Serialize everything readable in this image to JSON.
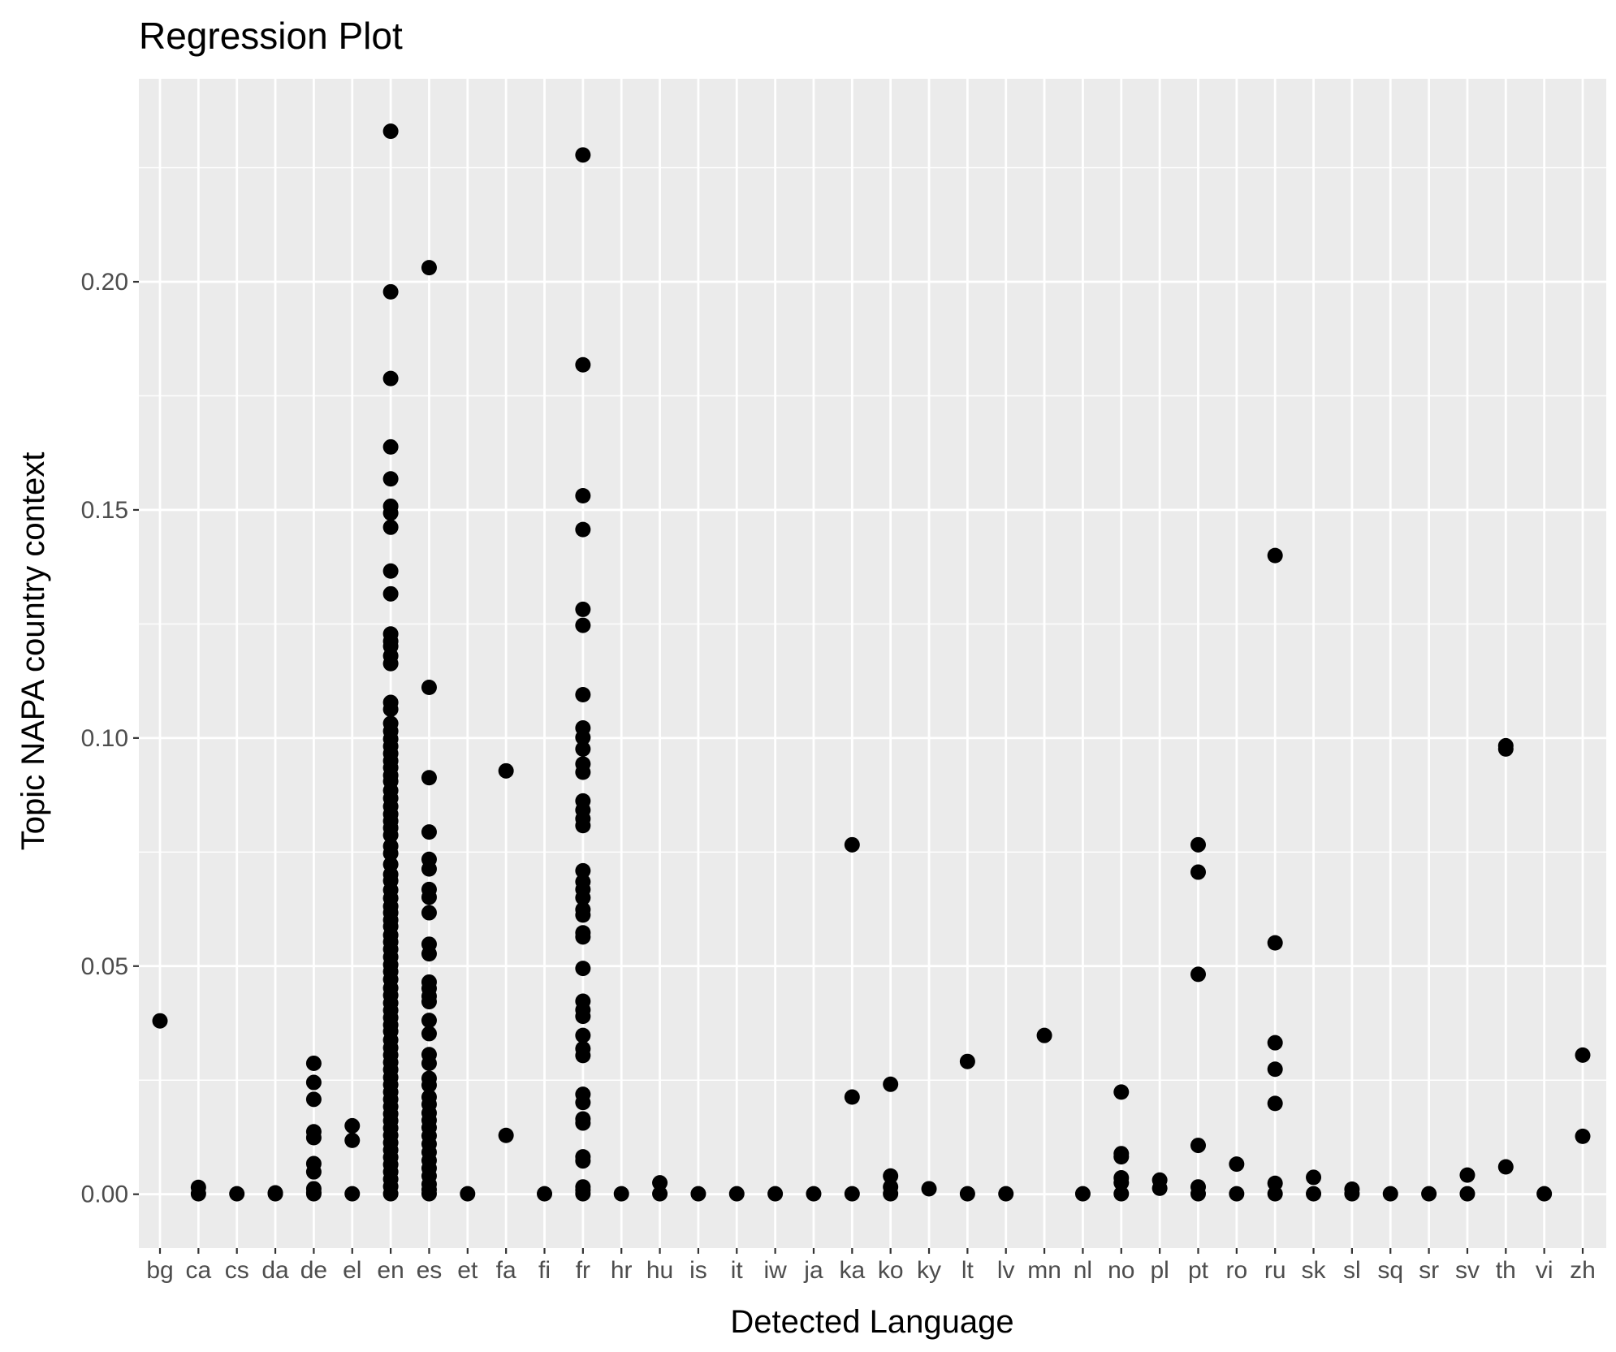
{
  "chart_data": {
    "type": "scatter",
    "title": "Regression Plot",
    "xlabel": "Detected Language",
    "ylabel": "Topic NAPA country context",
    "ylim": [
      -0.0118,
      0.2445
    ],
    "y_ticks": [
      "0.00",
      "0.05",
      "0.10",
      "0.15",
      "0.20"
    ],
    "y_tick_values": [
      0.0,
      0.05,
      0.1,
      0.15,
      0.2
    ],
    "grid": true,
    "legend": "none",
    "colors": {
      "panel": "#ebebeb",
      "grid": "#ffffff",
      "point": "#000000",
      "tick_text": "#4d4d4d",
      "tick_mark": "#333333"
    },
    "categories": [
      "bg",
      "ca",
      "cs",
      "da",
      "de",
      "el",
      "en",
      "es",
      "et",
      "fa",
      "fi",
      "fr",
      "hr",
      "hu",
      "is",
      "it",
      "iw",
      "ja",
      "ka",
      "ko",
      "ky",
      "lt",
      "lv",
      "mn",
      "nl",
      "no",
      "pl",
      "pt",
      "ro",
      "ru",
      "sk",
      "sl",
      "sq",
      "sr",
      "sv",
      "th",
      "vi",
      "zh"
    ],
    "points": {
      "bg": [
        0.038
      ],
      "ca": [
        0.0015,
        0.0001
      ],
      "cs": [
        0.0001
      ],
      "da": [
        0.0003,
        0.0001
      ],
      "de": [
        0.0287,
        0.0245,
        0.0208,
        0.0137,
        0.0124,
        0.0067,
        0.0049,
        0.0012,
        0.0004,
        0.0001
      ],
      "el": [
        0.015,
        0.0118,
        0.0001
      ],
      "en": [
        0.233,
        0.1978,
        0.1788,
        0.1638,
        0.1568,
        0.1508,
        0.1493,
        0.1462,
        0.1366,
        0.1316,
        0.1228,
        0.1212,
        0.1201,
        0.118,
        0.1163,
        0.1078,
        0.1063,
        0.1032,
        0.1015,
        0.0998,
        0.0982,
        0.0966,
        0.095,
        0.0935,
        0.0918,
        0.0905,
        0.0885,
        0.0868,
        0.085,
        0.0833,
        0.0818,
        0.0803,
        0.0787,
        0.0763,
        0.0747,
        0.0723,
        0.0701,
        0.0687,
        0.0667,
        0.0649,
        0.0631,
        0.0617,
        0.0601,
        0.0587,
        0.0568,
        0.0553,
        0.0537,
        0.052,
        0.0503,
        0.0488,
        0.0471,
        0.0452,
        0.0436,
        0.0419,
        0.0403,
        0.0387,
        0.0371,
        0.0357,
        0.0338,
        0.0321,
        0.0305,
        0.0289,
        0.0273,
        0.0256,
        0.024,
        0.0224,
        0.0208,
        0.0192,
        0.0176,
        0.0161,
        0.0145,
        0.0129,
        0.0113,
        0.0097,
        0.0081,
        0.0065,
        0.0049,
        0.0033,
        0.0017,
        0.0001
      ],
      "es": [
        0.2031,
        0.1111,
        0.0913,
        0.0794,
        0.0734,
        0.0713,
        0.0668,
        0.0651,
        0.0617,
        0.0548,
        0.0527,
        0.0465,
        0.0451,
        0.0434,
        0.0422,
        0.0381,
        0.0352,
        0.0306,
        0.0287,
        0.0254,
        0.0239,
        0.0213,
        0.0197,
        0.0178,
        0.0162,
        0.0146,
        0.0128,
        0.011,
        0.0092,
        0.0074,
        0.0057,
        0.004,
        0.0022,
        0.001,
        0.0001
      ],
      "et": [
        0.0001
      ],
      "fa": [
        0.0928,
        0.0129
      ],
      "fi": [
        0.0001
      ],
      "fr": [
        0.2278,
        0.1818,
        0.1531,
        0.1457,
        0.1282,
        0.1247,
        0.1095,
        0.1022,
        0.1001,
        0.0976,
        0.0943,
        0.0925,
        0.0862,
        0.0842,
        0.0823,
        0.0808,
        0.0709,
        0.0685,
        0.0668,
        0.065,
        0.0624,
        0.0612,
        0.0573,
        0.0564,
        0.0495,
        0.0423,
        0.0404,
        0.039,
        0.0348,
        0.0319,
        0.0304,
        0.0219,
        0.0201,
        0.0165,
        0.0156,
        0.0082,
        0.0073,
        0.0016,
        0.0009,
        0.0001
      ],
      "hr": [
        0.0001
      ],
      "hu": [
        0.0025,
        0.0001
      ],
      "is": [
        0.0001
      ],
      "it": [
        0.0001
      ],
      "iw": [
        0.0001
      ],
      "ja": [
        0.0001
      ],
      "ka": [
        0.0766,
        0.0213,
        0.0001
      ],
      "ko": [
        0.0241,
        0.004,
        0.0016,
        0.0001
      ],
      "ky": [
        0.0012
      ],
      "lt": [
        0.0291,
        0.0001
      ],
      "lv": [
        0.0001
      ],
      "mn": [
        0.0348
      ],
      "nl": [
        0.0001
      ],
      "no": [
        0.0224,
        0.0089,
        0.0082,
        0.0036,
        0.0025,
        0.0001
      ],
      "pl": [
        0.0031,
        0.0013
      ],
      "pt": [
        0.0766,
        0.0706,
        0.0482,
        0.0107,
        0.0016,
        0.0001
      ],
      "ro": [
        0.0066,
        0.0001
      ],
      "ru": [
        0.14,
        0.0551,
        0.0332,
        0.0274,
        0.0199,
        0.0024,
        0.0001
      ],
      "sk": [
        0.0037,
        0.0001
      ],
      "sl": [
        0.0011,
        0.0001
      ],
      "sq": [
        0.0001
      ],
      "sr": [
        0.0001
      ],
      "sv": [
        0.0042,
        0.0001
      ],
      "th": [
        0.0983,
        0.0976,
        0.006
      ],
      "vi": [
        0.0001
      ],
      "zh": [
        0.0305,
        0.0127
      ]
    }
  }
}
